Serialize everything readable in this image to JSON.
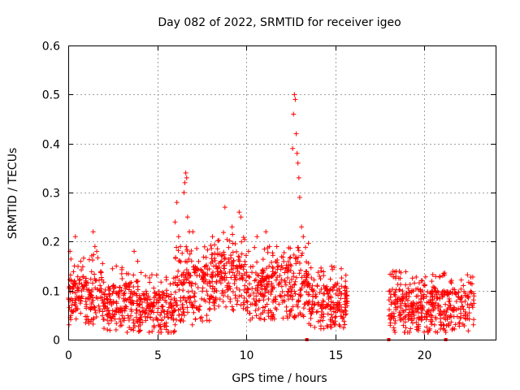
{
  "chart_data": {
    "type": "scatter",
    "title": "Day 082 of 2022, SRMTID for receiver igeo",
    "xlabel": "GPS time / hours",
    "ylabel": "SRMTID / TECUs",
    "xlim": [
      0,
      24
    ],
    "ylim": [
      0,
      0.6
    ],
    "xticks": [
      0,
      5,
      10,
      15,
      20
    ],
    "yticks": [
      0,
      0.1,
      0.2,
      0.3,
      0.4,
      0.5,
      0.6
    ],
    "xtick_labels": [
      "0",
      "5",
      "10",
      "15",
      "20"
    ],
    "ytick_labels": [
      "0",
      "0.1",
      "0.2",
      "0.3",
      "0.4",
      "0.5",
      "0.6"
    ],
    "grid": true,
    "marker": "+",
    "color": "#ff0000",
    "series": [
      {
        "name": "SRMTID",
        "segments": [
          {
            "x_range": [
              0.0,
              1.0
            ],
            "typical": [
              0.06,
              0.13
            ]
          },
          {
            "x_range": [
              1.0,
              2.0
            ],
            "typical": [
              0.06,
              0.14
            ]
          },
          {
            "x_range": [
              2.0,
              4.0
            ],
            "typical": [
              0.04,
              0.11
            ]
          },
          {
            "x_range": [
              4.0,
              6.0
            ],
            "typical": [
              0.04,
              0.1
            ]
          },
          {
            "x_range": [
              6.0,
              8.0
            ],
            "typical": [
              0.06,
              0.15
            ]
          },
          {
            "x_range": [
              8.0,
              10.0
            ],
            "typical": [
              0.09,
              0.18
            ]
          },
          {
            "x_range": [
              10.0,
              12.0
            ],
            "typical": [
              0.07,
              0.15
            ]
          },
          {
            "x_range": [
              12.0,
              13.5
            ],
            "typical": [
              0.07,
              0.16
            ]
          },
          {
            "x_range": [
              13.5,
              15.7
            ],
            "typical": [
              0.05,
              0.11
            ]
          },
          {
            "x_range": [
              18.0,
              22.8
            ],
            "typical": [
              0.04,
              0.1
            ]
          }
        ],
        "points": [
          [
            0.1,
            0.18
          ],
          [
            0.4,
            0.21
          ],
          [
            0.7,
            0.16
          ],
          [
            1.4,
            0.22
          ],
          [
            1.5,
            0.19
          ],
          [
            1.6,
            0.18
          ],
          [
            2.2,
            0.02
          ],
          [
            2.7,
            0.15
          ],
          [
            3.7,
            0.18
          ],
          [
            3.9,
            0.16
          ],
          [
            6.0,
            0.24
          ],
          [
            6.1,
            0.28
          ],
          [
            6.2,
            0.21
          ],
          [
            6.3,
            0.19
          ],
          [
            6.5,
            0.3
          ],
          [
            6.55,
            0.32
          ],
          [
            6.6,
            0.34
          ],
          [
            6.65,
            0.33
          ],
          [
            6.7,
            0.25
          ],
          [
            6.8,
            0.22
          ],
          [
            7.0,
            0.22
          ],
          [
            8.1,
            0.21
          ],
          [
            8.8,
            0.27
          ],
          [
            9.2,
            0.23
          ],
          [
            9.6,
            0.26
          ],
          [
            9.7,
            0.25
          ],
          [
            10.6,
            0.21
          ],
          [
            11.1,
            0.22
          ],
          [
            11.3,
            0.19
          ],
          [
            12.6,
            0.39
          ],
          [
            12.65,
            0.46
          ],
          [
            12.7,
            0.5
          ],
          [
            12.75,
            0.49
          ],
          [
            12.8,
            0.42
          ],
          [
            12.85,
            0.38
          ],
          [
            12.9,
            0.36
          ],
          [
            12.95,
            0.33
          ],
          [
            13.0,
            0.29
          ],
          [
            13.1,
            0.23
          ],
          [
            13.2,
            0.21
          ]
        ]
      }
    ],
    "gap_markers_x": [
      13.4,
      18.0,
      21.2
    ]
  }
}
